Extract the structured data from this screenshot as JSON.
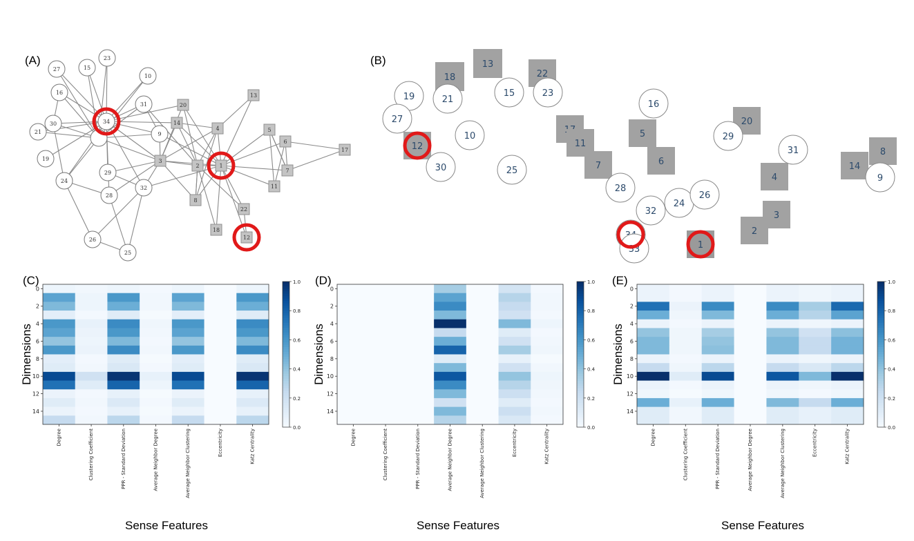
{
  "panels": {
    "a": "(A)",
    "b": "(B)",
    "c": "(C)",
    "d": "(D)",
    "e": "(E)"
  },
  "graph_a": {
    "circle_nodes": [
      "23",
      "27",
      "15",
      "10",
      "16",
      "31",
      "30",
      "34",
      "21",
      "9",
      "19",
      "29",
      "24",
      "28",
      "32",
      "26",
      "25"
    ],
    "square_nodes": [
      "13",
      "20",
      "14",
      "4",
      "5",
      "6",
      "17",
      "3",
      "2",
      "1",
      "7",
      "11",
      "8",
      "22",
      "18",
      "12"
    ],
    "highlighted": [
      "34",
      "1",
      "12"
    ]
  },
  "graph_b": {
    "circle_nodes": [
      "19",
      "21",
      "15",
      "23",
      "16",
      "27",
      "10",
      "29",
      "31",
      "30",
      "25",
      "9",
      "28",
      "24",
      "26",
      "32",
      "34",
      "33"
    ],
    "square_nodes": [
      "13",
      "18",
      "22",
      "20",
      "17",
      "11",
      "5",
      "7",
      "6",
      "4",
      "14",
      "8",
      "3",
      "2",
      "12",
      "1"
    ],
    "highlighted": [
      "12",
      "34",
      "1"
    ]
  },
  "chart_data": [
    {
      "type": "heatmap",
      "panel": "(C)",
      "xlabel": "Sense Features",
      "ylabel": "Dimensions",
      "x_categories": [
        "Degree",
        "Clustering Coefficient",
        "PPR - Standard Deviation",
        "Average Neighbor Degree",
        "Average Neighbor Clustering",
        "Eccentricity",
        "Katz Centrality"
      ],
      "y_ticks": [
        "0",
        "2",
        "4",
        "6",
        "8",
        "10",
        "12",
        "14"
      ],
      "colorbar_ticks": [
        "0.0",
        "0.2",
        "0.4",
        "0.6",
        "0.8",
        "1.0"
      ],
      "values": [
        [
          0.05,
          0.03,
          0.05,
          0.02,
          0.05,
          0.0,
          0.05
        ],
        [
          0.55,
          0.05,
          0.6,
          0.03,
          0.55,
          0.0,
          0.6
        ],
        [
          0.45,
          0.05,
          0.5,
          0.03,
          0.45,
          0.0,
          0.5
        ],
        [
          0.1,
          0.02,
          0.12,
          0.01,
          0.1,
          0.0,
          0.12
        ],
        [
          0.6,
          0.08,
          0.65,
          0.04,
          0.6,
          0.0,
          0.65
        ],
        [
          0.55,
          0.06,
          0.6,
          0.03,
          0.55,
          0.0,
          0.6
        ],
        [
          0.4,
          0.05,
          0.45,
          0.02,
          0.4,
          0.0,
          0.45
        ],
        [
          0.6,
          0.06,
          0.65,
          0.03,
          0.6,
          0.0,
          0.65
        ],
        [
          0.1,
          0.02,
          0.12,
          0.01,
          0.1,
          0.0,
          0.12
        ],
        [
          0.12,
          0.03,
          0.15,
          0.02,
          0.12,
          0.0,
          0.15
        ],
        [
          0.9,
          0.2,
          0.98,
          0.08,
          0.9,
          0.0,
          0.98
        ],
        [
          0.75,
          0.12,
          0.8,
          0.05,
          0.75,
          0.0,
          0.8
        ],
        [
          0.06,
          0.02,
          0.08,
          0.01,
          0.06,
          0.0,
          0.08
        ],
        [
          0.12,
          0.03,
          0.14,
          0.02,
          0.12,
          0.0,
          0.14
        ],
        [
          0.06,
          0.02,
          0.08,
          0.01,
          0.06,
          0.0,
          0.08
        ],
        [
          0.25,
          0.03,
          0.28,
          0.02,
          0.25,
          0.0,
          0.28
        ]
      ]
    },
    {
      "type": "heatmap",
      "panel": "(D)",
      "xlabel": "Sense Features",
      "ylabel": "Dimensions",
      "x_categories": [
        "Degree",
        "Clustering Coefficient",
        "PPR - Standard Deviation",
        "Average Neighbor Degree",
        "Average Neighbor Clustering",
        "Eccentricity",
        "Katz Centrality"
      ],
      "y_ticks": [
        "0",
        "2",
        "4",
        "6",
        "8",
        "10",
        "12",
        "14"
      ],
      "colorbar_ticks": [
        "0.0",
        "0.2",
        "0.4",
        "0.6",
        "0.8",
        "1.0"
      ],
      "values": [
        [
          0,
          0,
          0,
          0.35,
          0,
          0.18,
          0.02
        ],
        [
          0,
          0,
          0,
          0.55,
          0,
          0.3,
          0.03
        ],
        [
          0,
          0,
          0,
          0.65,
          0,
          0.25,
          0.03
        ],
        [
          0,
          0,
          0,
          0.45,
          0,
          0.2,
          0.02
        ],
        [
          0,
          0,
          0,
          1.0,
          0,
          0.45,
          0.05
        ],
        [
          0,
          0,
          0,
          0.25,
          0,
          0.12,
          0.02
        ],
        [
          0,
          0,
          0,
          0.5,
          0,
          0.2,
          0.03
        ],
        [
          0,
          0,
          0,
          0.8,
          0,
          0.35,
          0.04
        ],
        [
          0,
          0,
          0,
          0.12,
          0,
          0.08,
          0.01
        ],
        [
          0,
          0,
          0,
          0.45,
          0,
          0.2,
          0.03
        ],
        [
          0,
          0,
          0,
          0.85,
          0,
          0.4,
          0.05
        ],
        [
          0,
          0,
          0,
          0.65,
          0,
          0.3,
          0.04
        ],
        [
          0,
          0,
          0,
          0.45,
          0,
          0.22,
          0.03
        ],
        [
          0,
          0,
          0,
          0.2,
          0,
          0.12,
          0.02
        ],
        [
          0,
          0,
          0,
          0.45,
          0,
          0.22,
          0.03
        ],
        [
          0,
          0,
          0,
          0.3,
          0,
          0.15,
          0.02
        ]
      ]
    },
    {
      "type": "heatmap",
      "panel": "(E)",
      "xlabel": "Sense Features",
      "ylabel": "Dimensions",
      "x_categories": [
        "Degree",
        "Clustering Coefficient",
        "PPR - Standard Deviation",
        "Average Neighbor Degree",
        "Average Neighbor Clustering",
        "Eccentricity",
        "Katz Centrality"
      ],
      "y_ticks": [
        "0",
        "2",
        "4",
        "6",
        "8",
        "10",
        "12",
        "14"
      ],
      "colorbar_ticks": [
        "0.0",
        "0.2",
        "0.4",
        "0.6",
        "0.8",
        "1.0"
      ],
      "values": [
        [
          0.06,
          0.02,
          0.06,
          0.0,
          0.06,
          0.04,
          0.06
        ],
        [
          0.06,
          0.02,
          0.06,
          0.0,
          0.06,
          0.04,
          0.06
        ],
        [
          0.75,
          0.06,
          0.65,
          0.0,
          0.65,
          0.35,
          0.78
        ],
        [
          0.5,
          0.04,
          0.45,
          0.0,
          0.5,
          0.3,
          0.55
        ],
        [
          0.06,
          0.02,
          0.06,
          0.0,
          0.06,
          0.04,
          0.06
        ],
        [
          0.4,
          0.04,
          0.35,
          0.0,
          0.4,
          0.2,
          0.42
        ],
        [
          0.45,
          0.04,
          0.4,
          0.0,
          0.45,
          0.25,
          0.48
        ],
        [
          0.45,
          0.04,
          0.42,
          0.0,
          0.45,
          0.25,
          0.48
        ],
        [
          0.06,
          0.02,
          0.06,
          0.0,
          0.06,
          0.04,
          0.06
        ],
        [
          0.25,
          0.04,
          0.28,
          0.0,
          0.25,
          0.15,
          0.28
        ],
        [
          1.0,
          0.12,
          0.9,
          0.0,
          0.85,
          0.45,
          1.0
        ],
        [
          0.06,
          0.02,
          0.06,
          0.0,
          0.06,
          0.04,
          0.06
        ],
        [
          0.04,
          0.01,
          0.04,
          0.0,
          0.04,
          0.02,
          0.04
        ],
        [
          0.5,
          0.08,
          0.5,
          0.0,
          0.45,
          0.25,
          0.5
        ],
        [
          0.12,
          0.03,
          0.12,
          0.0,
          0.12,
          0.08,
          0.12
        ],
        [
          0.12,
          0.03,
          0.12,
          0.0,
          0.12,
          0.08,
          0.12
        ]
      ]
    }
  ]
}
